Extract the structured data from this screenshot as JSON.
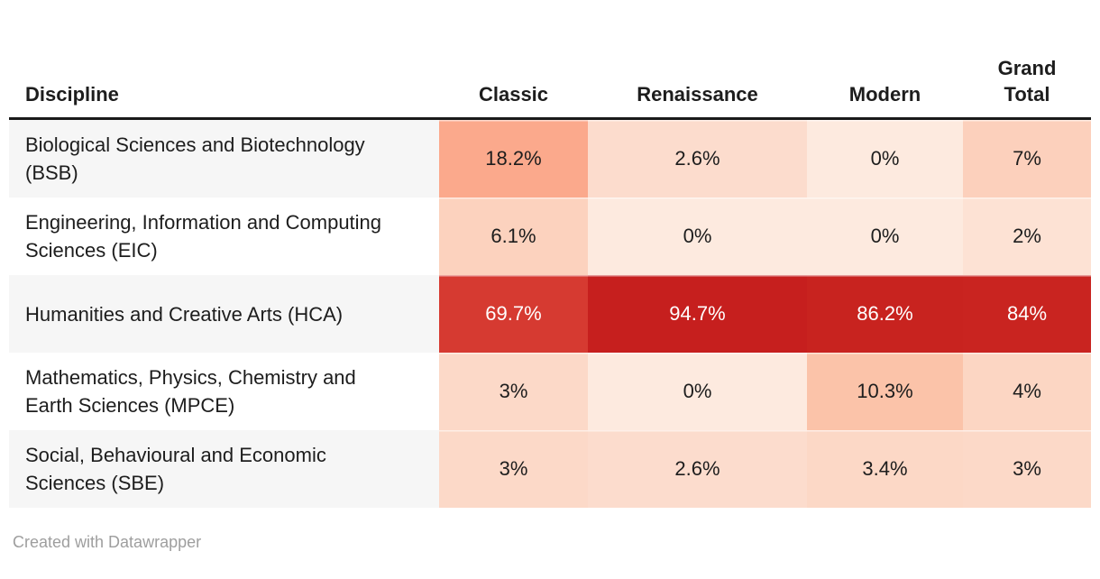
{
  "table": {
    "discipline_header": "Discipline",
    "columns": [
      "Classic",
      "Renaissance",
      "Modern",
      "Grand Total"
    ],
    "rows": [
      {
        "label": "Biological Sciences and Biotechnology (BSB)",
        "values": [
          "18.2%",
          "2.6%",
          "0%",
          "7%"
        ],
        "colors": [
          "#fba98c",
          "#fcdccd",
          "#fdeadf",
          "#fcd0bc"
        ],
        "text_colors": [
          "#1d1d1d",
          "#1d1d1d",
          "#1d1d1d",
          "#1d1d1d"
        ]
      },
      {
        "label": "Engineering, Information and Computing Sciences (EIC)",
        "values": [
          "6.1%",
          "0%",
          "0%",
          "2%"
        ],
        "colors": [
          "#fcd2be",
          "#fdeadf",
          "#fdeadf",
          "#fde2d4"
        ],
        "text_colors": [
          "#1d1d1d",
          "#1d1d1d",
          "#1d1d1d",
          "#1d1d1d"
        ]
      },
      {
        "label": "Humanities and Creative Arts (HCA)",
        "values": [
          "69.7%",
          "94.7%",
          "86.2%",
          "84%"
        ],
        "colors": [
          "#d63a31",
          "#c61f1e",
          "#c8231f",
          "#c92420"
        ],
        "text_colors": [
          "#ffffff",
          "#ffffff",
          "#ffffff",
          "#ffffff"
        ]
      },
      {
        "label": "Mathematics, Physics, Chemistry and Earth Sciences (MPCE)",
        "values": [
          "3%",
          "0%",
          "10.3%",
          "4%"
        ],
        "colors": [
          "#fcd9c8",
          "#fdeadf",
          "#fbc3a9",
          "#fcd6c3"
        ],
        "text_colors": [
          "#1d1d1d",
          "#1d1d1d",
          "#1d1d1d",
          "#1d1d1d"
        ]
      },
      {
        "label": "Social, Behavioural and Economic Sciences (SBE)",
        "values": [
          "3%",
          "2.6%",
          "3.4%",
          "3%"
        ],
        "colors": [
          "#fcd9c8",
          "#fcdccd",
          "#fcd8c6",
          "#fcd9c8"
        ],
        "text_colors": [
          "#1d1d1d",
          "#1d1d1d",
          "#1d1d1d",
          "#1d1d1d"
        ]
      }
    ]
  },
  "footer": {
    "attribution": "Created with Datawrapper"
  },
  "colors": {
    "background": "#ffffff",
    "header_rule": "#1a1a1a",
    "text": "#1d1d1d",
    "row_plain": "#ffffff",
    "row_stripe": "#f6f6f6",
    "footer_text": "#9e9e9e"
  },
  "chart_data": {
    "type": "heatmap",
    "title": "",
    "categories_rows": [
      "Biological Sciences and Biotechnology (BSB)",
      "Engineering, Information and Computing Sciences (EIC)",
      "Humanities and Creative Arts (HCA)",
      "Mathematics, Physics, Chemistry and Earth Sciences (MPCE)",
      "Social, Behavioural and Economic Sciences (SBE)"
    ],
    "categories_cols": [
      "Classic",
      "Renaissance",
      "Modern",
      "Grand Total"
    ],
    "values_percent": [
      [
        18.2,
        2.6,
        0,
        7
      ],
      [
        6.1,
        0,
        0,
        2
      ],
      [
        69.7,
        94.7,
        86.2,
        84
      ],
      [
        3,
        0,
        10.3,
        4
      ],
      [
        3,
        2.6,
        3.4,
        3
      ]
    ],
    "color_scale": {
      "low": "#fdeadf",
      "high": "#c61f1e",
      "scheme": "reds"
    },
    "legend_position": "none",
    "grid": false
  }
}
